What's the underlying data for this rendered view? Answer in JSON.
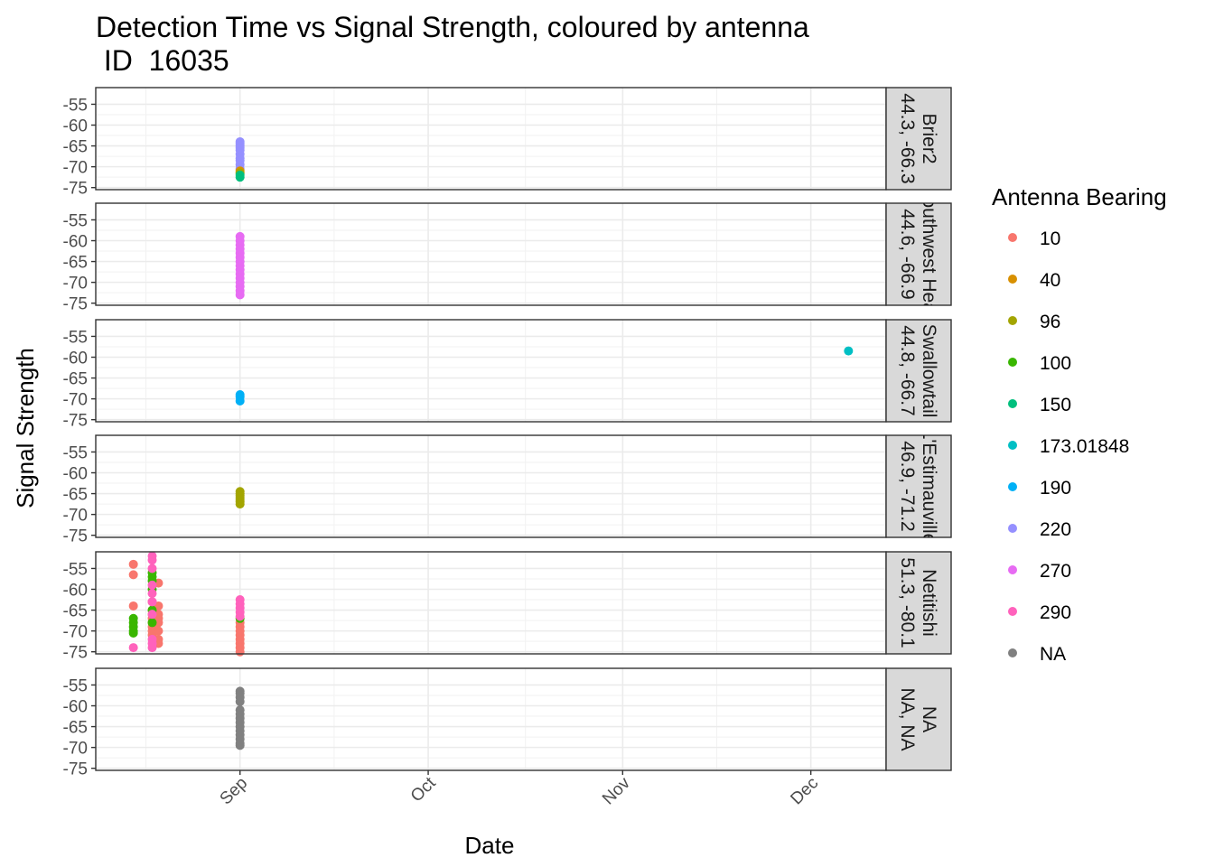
{
  "chart_data": {
    "type": "scatter",
    "title": "Detection Time vs Signal Strength, coloured by antenna",
    "subtitle": " ID  16035",
    "xlabel": "Date",
    "ylabel": "Signal Strength",
    "x_ticks": [
      "Sep",
      "Oct",
      "Nov",
      "Dec"
    ],
    "x_tick_dates": [
      "2000-09-01",
      "2000-10-01",
      "2000-11-01",
      "2000-12-01"
    ],
    "xlim": [
      "2000-08-09",
      "2000-12-13"
    ],
    "y_ticks": [
      -55,
      -60,
      -65,
      -70,
      -75
    ],
    "ylim": [
      -75.5,
      -51
    ],
    "grid": true,
    "legend": {
      "title": "Antenna Bearing",
      "position": "right",
      "entries": [
        {
          "label": "10",
          "color": "#F8766D"
        },
        {
          "label": "40",
          "color": "#D89000"
        },
        {
          "label": "96",
          "color": "#A3A500"
        },
        {
          "label": "100",
          "color": "#39B600"
        },
        {
          "label": "150",
          "color": "#00BF7D"
        },
        {
          "label": "173.01848",
          "color": "#00BFC4"
        },
        {
          "label": "190",
          "color": "#00B0F6"
        },
        {
          "label": "220",
          "color": "#9590FF"
        },
        {
          "label": "270",
          "color": "#E76BF3"
        },
        {
          "label": "290",
          "color": "#FF62BC"
        },
        {
          "label": "NA",
          "color": "#808080"
        }
      ]
    },
    "facets": [
      {
        "strip": [
          "Brier2",
          "44.3, -66.3"
        ],
        "series": [
          {
            "bearing": "220",
            "x": [
              "2000-09-01",
              "2000-09-01",
              "2000-09-01",
              "2000-09-01",
              "2000-09-01",
              "2000-09-01",
              "2000-09-01",
              "2000-09-01",
              "2000-09-01",
              "2000-09-01"
            ],
            "y": [
              -64,
              -64.5,
              -65,
              -65.5,
              -66,
              -67,
              -68,
              -68.5,
              -69.5,
              -70.5
            ]
          },
          {
            "bearing": "40",
            "x": [
              "2000-09-01",
              "2000-09-01"
            ],
            "y": [
              -71,
              -71.5
            ]
          },
          {
            "bearing": "96",
            "x": [
              "2000-09-01"
            ],
            "y": [
              -71.5
            ]
          },
          {
            "bearing": "150",
            "x": [
              "2000-09-01",
              "2000-09-01"
            ],
            "y": [
              -72,
              -72.5
            ]
          }
        ]
      },
      {
        "strip": [
          "Southwest Head",
          "44.6, -66.9"
        ],
        "series": [
          {
            "bearing": "270",
            "x": [
              "2000-09-01",
              "2000-09-01",
              "2000-09-01",
              "2000-09-01",
              "2000-09-01",
              "2000-09-01",
              "2000-09-01",
              "2000-09-01",
              "2000-09-01",
              "2000-09-01",
              "2000-09-01",
              "2000-09-01",
              "2000-09-01",
              "2000-09-01",
              "2000-09-01"
            ],
            "y": [
              -59,
              -60,
              -61,
              -62,
              -63,
              -64,
              -65,
              -66,
              -67,
              -68,
              -69,
              -70,
              -71,
              -72,
              -73
            ]
          }
        ]
      },
      {
        "strip": [
          "Swallowtail",
          "44.8, -66.7"
        ],
        "series": [
          {
            "bearing": "173.01848",
            "x": [
              "2000-12-07"
            ],
            "y": [
              -58.5
            ]
          },
          {
            "bearing": "190",
            "x": [
              "2000-09-01",
              "2000-09-01",
              "2000-09-01"
            ],
            "y": [
              -69,
              -69.5,
              -70.5
            ]
          }
        ]
      },
      {
        "strip": [
          "L'Estimauville",
          "46.9, -71.2"
        ],
        "series": [
          {
            "bearing": "96",
            "x": [
              "2000-09-01",
              "2000-09-01",
              "2000-09-01",
              "2000-09-01",
              "2000-09-01",
              "2000-09-01",
              "2000-09-01"
            ],
            "y": [
              -64.5,
              -65,
              -65.5,
              -66,
              -66.5,
              -67,
              -67.5
            ]
          }
        ]
      },
      {
        "strip": [
          "Netitishi",
          "51.3, -80.1"
        ],
        "series": [
          {
            "bearing": "10",
            "x": [
              "2000-08-15",
              "2000-08-15",
              "2000-08-15",
              "2000-08-18",
              "2000-08-18",
              "2000-08-18",
              "2000-08-18",
              "2000-08-18",
              "2000-08-18",
              "2000-08-18",
              "2000-08-18",
              "2000-08-19",
              "2000-08-19",
              "2000-08-19",
              "2000-08-19",
              "2000-08-19",
              "2000-08-19",
              "2000-08-19",
              "2000-08-19",
              "2000-09-01",
              "2000-09-01",
              "2000-09-01",
              "2000-09-01",
              "2000-09-01",
              "2000-09-01",
              "2000-09-01",
              "2000-09-01"
            ],
            "y": [
              -54,
              -56.5,
              -64,
              -63,
              -65,
              -66,
              -67,
              -68,
              -69,
              -70,
              -71,
              -58.5,
              -64,
              -66,
              -67,
              -68,
              -70,
              -72,
              -73,
              -68,
              -69,
              -70,
              -71,
              -72,
              -73,
              -74,
              -75
            ]
          },
          {
            "bearing": "100",
            "x": [
              "2000-08-15",
              "2000-08-15",
              "2000-08-15",
              "2000-08-15",
              "2000-08-15",
              "2000-08-18",
              "2000-08-18",
              "2000-08-18",
              "2000-08-18",
              "2000-08-18",
              "2000-08-18",
              "2000-09-01"
            ],
            "y": [
              -67,
              -68,
              -69,
              -70,
              -70.5,
              -56,
              -57,
              -58,
              -60,
              -65,
              -68,
              -67
            ]
          },
          {
            "bearing": "290",
            "x": [
              "2000-08-15",
              "2000-08-18",
              "2000-08-18",
              "2000-08-18",
              "2000-08-18",
              "2000-08-18",
              "2000-08-18",
              "2000-08-18",
              "2000-08-18",
              "2000-08-18",
              "2000-08-18",
              "2000-09-01",
              "2000-09-01",
              "2000-09-01",
              "2000-09-01",
              "2000-09-01"
            ],
            "y": [
              -74,
              -52,
              -53,
              -55,
              -59,
              -61,
              -63,
              -66,
              -72,
              -73,
              -74,
              -62.5,
              -63.5,
              -64.5,
              -65.5,
              -66.5
            ]
          }
        ]
      },
      {
        "strip": [
          "NA",
          "NA, NA"
        ],
        "series": [
          {
            "bearing": "NA",
            "x": [
              "2000-09-01",
              "2000-09-01",
              "2000-09-01",
              "2000-09-01",
              "2000-09-01",
              "2000-09-01",
              "2000-09-01",
              "2000-09-01",
              "2000-09-01",
              "2000-09-01",
              "2000-09-01",
              "2000-09-01",
              "2000-09-01",
              "2000-09-01"
            ],
            "y": [
              -56.5,
              -57,
              -58,
              -59,
              -61,
              -62,
              -63,
              -64,
              -65,
              -66,
              -67,
              -68,
              -69,
              -69.5
            ]
          }
        ]
      }
    ]
  }
}
